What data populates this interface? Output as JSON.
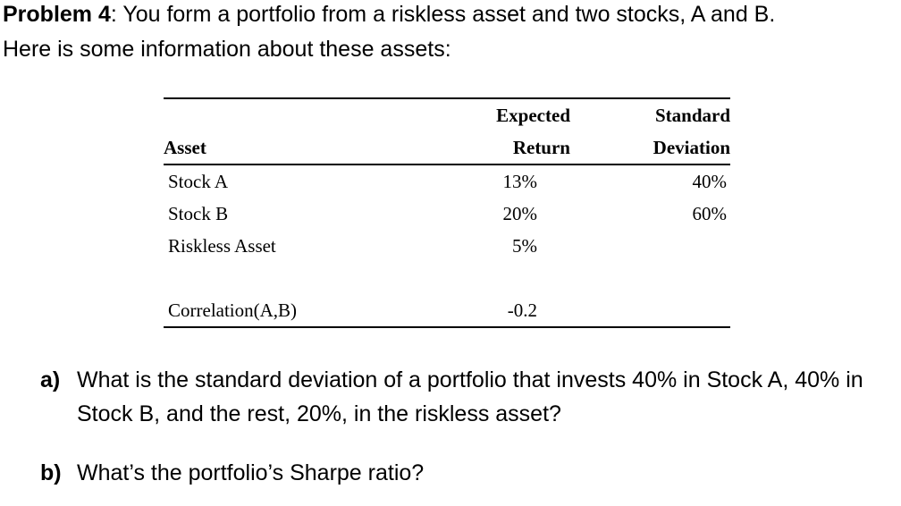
{
  "page": {
    "background_color": "#ffffff",
    "text_color": "#000000"
  },
  "intro": {
    "problem_label": "Problem 4",
    "line1_rest": ": You form a portfolio from a riskless asset and two stocks, A and B.",
    "line2": "Here is some information about these assets:"
  },
  "table": {
    "header": {
      "asset": "Asset",
      "expected_line1": "Expected",
      "expected_line2": "Return",
      "std_line1": "Standard",
      "std_line2": "Deviation"
    },
    "rows": [
      {
        "asset": "Stock A",
        "expected_return": "13%",
        "std_dev": "40%"
      },
      {
        "asset": "Stock B",
        "expected_return": "20%",
        "std_dev": "60%"
      },
      {
        "asset": "Riskless Asset",
        "expected_return": "5%",
        "std_dev": ""
      },
      {
        "asset": "Correlation(A,B)",
        "expected_return": "-0.2",
        "std_dev": ""
      }
    ]
  },
  "questions": [
    {
      "label": "a)",
      "text": "What is the standard deviation of a portfolio that invests 40% in Stock A, 40% in Stock B, and the rest, 20%, in the riskless asset?"
    },
    {
      "label": "b)",
      "text": "What’s the portfolio’s Sharpe ratio?"
    }
  ]
}
